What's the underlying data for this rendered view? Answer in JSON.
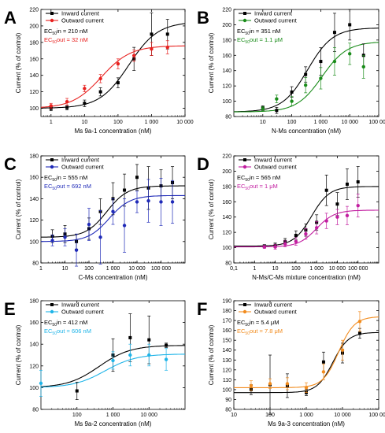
{
  "chart_data": [
    {
      "type": "scatter",
      "panel_label": "A",
      "xlabel": "Ms 9a-1 concentration (nM)",
      "ylabel": "Current (% of control)",
      "xscale": "log",
      "xlim": [
        0.5,
        10000
      ],
      "ylim": [
        90,
        220
      ],
      "xticks": [
        1,
        10,
        100,
        1000,
        10000
      ],
      "xtick_labels": [
        "1",
        "10",
        "100",
        "1 000",
        "10 000"
      ],
      "yticks": [
        100,
        120,
        140,
        160,
        180,
        200,
        220
      ],
      "ec50_labels": [
        {
          "text": "EC50in = 210 nM",
          "color": "#000000"
        },
        {
          "text": "EC50out = 32 nM",
          "color": "#e8211f"
        }
      ],
      "series": [
        {
          "name": "Inward current",
          "color": "#000000",
          "marker": "square",
          "x": [
            1,
            3,
            10,
            30,
            100,
            300,
            1000,
            3000
          ],
          "y": [
            100,
            101,
            106,
            120,
            131,
            160,
            190,
            190
          ],
          "err": [
            3,
            3,
            4,
            5,
            6,
            14,
            26,
            18
          ],
          "fit": {
            "bottom": 100,
            "top": 205,
            "ec50": 210,
            "hill": 1.0
          }
        },
        {
          "name": "Outward current",
          "color": "#e8211f",
          "marker": "circle",
          "x": [
            1,
            3,
            10,
            30,
            100,
            300,
            1000,
            3000
          ],
          "y": [
            103,
            108,
            124,
            136,
            154,
            164,
            172,
            174
          ],
          "err": [
            3,
            4,
            4,
            5,
            6,
            7,
            8,
            8
          ],
          "fit": {
            "bottom": 100,
            "top": 176,
            "ec50": 32,
            "hill": 1.0
          }
        }
      ]
    },
    {
      "type": "scatter",
      "panel_label": "B",
      "xlabel": "N-Ms concentration (nM)",
      "ylabel": "Current (% of control)",
      "xscale": "log",
      "xlim": [
        1,
        100000
      ],
      "ylim": [
        80,
        220
      ],
      "xticks": [
        10,
        100,
        1000,
        10000,
        100000
      ],
      "xtick_labels": [
        "10",
        "100",
        "1 000",
        "10 000",
        "100 000"
      ],
      "yticks": [
        80,
        100,
        120,
        140,
        160,
        180,
        200,
        220
      ],
      "ec50_labels": [
        {
          "text": "EC50in = 351 nM",
          "color": "#000000"
        },
        {
          "text": "EC50out = 1.1 μM",
          "color": "#1a8c1a"
        }
      ],
      "series": [
        {
          "name": "Inward current",
          "color": "#000000",
          "marker": "square",
          "x": [
            10,
            30,
            100,
            300,
            1000,
            3000,
            10000,
            30000
          ],
          "y": [
            91,
            88,
            112,
            135,
            152,
            190,
            200,
            160
          ],
          "err": [
            3,
            4,
            7,
            10,
            18,
            25,
            20,
            15
          ],
          "fit": {
            "bottom": 86,
            "top": 196,
            "ec50": 351,
            "hill": 1.0
          }
        },
        {
          "name": "Outward current",
          "color": "#1a8c1a",
          "marker": "circle",
          "x": [
            10,
            30,
            100,
            300,
            1000,
            3000,
            10000,
            30000
          ],
          "y": [
            90,
            103,
            100,
            121,
            130,
            152,
            162,
            145
          ],
          "err": [
            3,
            5,
            6,
            10,
            14,
            18,
            14,
            15
          ],
          "fit": {
            "bottom": 86,
            "top": 178,
            "ec50": 1100,
            "hill": 1.0
          }
        }
      ]
    },
    {
      "type": "scatter",
      "panel_label": "C",
      "xlabel": "C-Ms concentration (nM)",
      "ylabel": "Current (% of control)",
      "xscale": "log",
      "xlim": [
        1,
        1000000
      ],
      "ylim": [
        80,
        180
      ],
      "xticks": [
        1,
        10,
        100,
        1000,
        10000,
        100000
      ],
      "xtick_labels": [
        "1",
        "10",
        "100",
        "1 000",
        "10 000",
        "100 000"
      ],
      "yticks": [
        80,
        100,
        120,
        140,
        160,
        180
      ],
      "ec50_labels": [
        {
          "text": "EC50in = 555 nM",
          "color": "#000000"
        },
        {
          "text": "EC50out = 692 nM",
          "color": "#1f2ab8"
        }
      ],
      "series": [
        {
          "name": "Inward current",
          "color": "#000000",
          "marker": "square",
          "x": [
            3,
            10,
            30,
            100,
            300,
            1000,
            3000,
            10000,
            30000,
            100000,
            300000
          ],
          "y": [
            105,
            107,
            100,
            112,
            128,
            140,
            148,
            160,
            150,
            152,
            155
          ],
          "err": [
            6,
            8,
            7,
            10,
            12,
            15,
            15,
            12,
            20,
            15,
            15
          ],
          "fit": {
            "bottom": 104,
            "top": 152,
            "ec50": 555,
            "hill": 1.0
          }
        },
        {
          "name": "Outward current",
          "color": "#1f2ab8",
          "marker": "circle",
          "x": [
            3,
            10,
            30,
            100,
            300,
            1000,
            3000,
            10000,
            30000,
            100000,
            300000
          ],
          "y": [
            101,
            104,
            92,
            116,
            104,
            128,
            115,
            137,
            138,
            137,
            137
          ],
          "err": [
            5,
            8,
            15,
            15,
            25,
            12,
            25,
            10,
            20,
            22,
            20
          ],
          "fit": {
            "bottom": 100,
            "top": 143,
            "ec50": 692,
            "hill": 1.0
          }
        }
      ]
    },
    {
      "type": "scatter",
      "panel_label": "D",
      "xlabel": "N-Ms/C-Ms mixture concentration (nM)",
      "ylabel": "Current (% of control)",
      "xscale": "log",
      "xlim": [
        0.1,
        1000000
      ],
      "ylim": [
        80,
        220
      ],
      "xticks": [
        0.1,
        1,
        10,
        100,
        1000,
        10000,
        100000
      ],
      "xtick_labels": [
        "0,1",
        "1",
        "10",
        "100",
        "1 000",
        "10 000",
        "100 000"
      ],
      "yticks": [
        80,
        100,
        120,
        140,
        160,
        180,
        200,
        220
      ],
      "ec50_labels": [
        {
          "text": "EC50in = 565 nM",
          "color": "#000000"
        },
        {
          "text": "EC50out = 1 μM",
          "color": "#c21ea0"
        }
      ],
      "series": [
        {
          "name": "Inward current",
          "color": "#000000",
          "marker": "square",
          "x": [
            3,
            10,
            30,
            100,
            300,
            1000,
            3000,
            10000,
            30000,
            100000
          ],
          "y": [
            102,
            103,
            108,
            116,
            123,
            133,
            175,
            157,
            183,
            186
          ],
          "err": [
            2,
            3,
            4,
            6,
            8,
            10,
            20,
            15,
            20,
            20
          ],
          "fit": {
            "bottom": 102,
            "top": 180,
            "ec50": 565,
            "hill": 1.0
          }
        },
        {
          "name": "Outward current",
          "color": "#c21ea0",
          "marker": "circle",
          "x": [
            3,
            10,
            30,
            100,
            300,
            1000,
            3000,
            10000,
            30000,
            100000
          ],
          "y": [
            101,
            101,
            105,
            108,
            118,
            126,
            135,
            140,
            142,
            155
          ],
          "err": [
            2,
            3,
            4,
            5,
            7,
            8,
            10,
            10,
            12,
            15
          ],
          "fit": {
            "bottom": 101,
            "top": 149,
            "ec50": 1000,
            "hill": 1.0
          }
        }
      ]
    },
    {
      "type": "scatter",
      "panel_label": "E",
      "xlabel": "Ms 9a-2 concentration (nM)",
      "ylabel": "Current (% of control)",
      "xscale": "log",
      "xlim": [
        10,
        100000
      ],
      "ylim": [
        80,
        180
      ],
      "xticks": [
        100,
        1000,
        10000
      ],
      "xtick_labels": [
        "100",
        "1 000",
        "10 000"
      ],
      "yticks": [
        80,
        100,
        120,
        140,
        160,
        180
      ],
      "ec50_labels": [
        {
          "text": "EC50in = 412 nM",
          "color": "#000000"
        },
        {
          "text": "EC50out = 606 nM",
          "color": "#1eb4e8"
        }
      ],
      "series": [
        {
          "name": "Inward current",
          "color": "#000000",
          "marker": "square",
          "x": [
            100,
            1000,
            3000,
            10000,
            30000
          ],
          "y": [
            97,
            130,
            146,
            144,
            139
          ],
          "err": [
            8,
            15,
            22,
            22,
            2
          ],
          "fit": {
            "bottom": 100,
            "top": 139,
            "ec50": 412,
            "hill": 1.0
          }
        },
        {
          "name": "Outward current",
          "color": "#1eb4e8",
          "marker": "circle",
          "x": [
            10,
            1000,
            3000,
            10000,
            30000
          ],
          "y": [
            104,
            125,
            130,
            130,
            126
          ],
          "err": [
            12,
            8,
            10,
            10,
            10
          ],
          "fit": {
            "bottom": 100,
            "top": 131,
            "ec50": 606,
            "hill": 1.0
          }
        }
      ]
    },
    {
      "type": "scatter",
      "panel_label": "F",
      "xlabel": "Ms 9a-3 concentration (nM)",
      "ylabel": "Current (% of control)",
      "xscale": "log",
      "xlim": [
        10,
        100000
      ],
      "ylim": [
        80,
        190
      ],
      "xticks": [
        10,
        100,
        1000,
        10000,
        100000
      ],
      "xtick_labels": [
        "10",
        "100",
        "1 000",
        "10 000",
        "100 000"
      ],
      "yticks": [
        80,
        90,
        100,
        110,
        120,
        130,
        140,
        150,
        160,
        170,
        180,
        190
      ],
      "ec50_labels": [
        {
          "text": "EC50in = 5.4 μM",
          "color": "#000000"
        },
        {
          "text": "EC50out = 7.8 μM",
          "color": "#f28c1e"
        }
      ],
      "series": [
        {
          "name": "Inward current",
          "color": "#000000",
          "marker": "square",
          "x": [
            30,
            100,
            300,
            1000,
            3000,
            10000,
            30000
          ],
          "y": [
            100,
            105,
            104,
            97,
            128,
            137,
            157
          ],
          "err": [
            5,
            30,
            12,
            3,
            10,
            10,
            5
          ],
          "fit": {
            "bottom": 97,
            "top": 158,
            "ec50": 5400,
            "hill": 2.0
          }
        },
        {
          "name": "Outward current",
          "color": "#f28c1e",
          "marker": "circle",
          "x": [
            30,
            100,
            300,
            1000,
            3000,
            10000,
            30000
          ],
          "y": [
            104,
            106,
            106,
            102,
            118,
            140,
            169
          ],
          "err": [
            5,
            5,
            6,
            5,
            8,
            10,
            10
          ],
          "fit": {
            "bottom": 102,
            "top": 174,
            "ec50": 7800,
            "hill": 2.0
          }
        }
      ]
    }
  ]
}
